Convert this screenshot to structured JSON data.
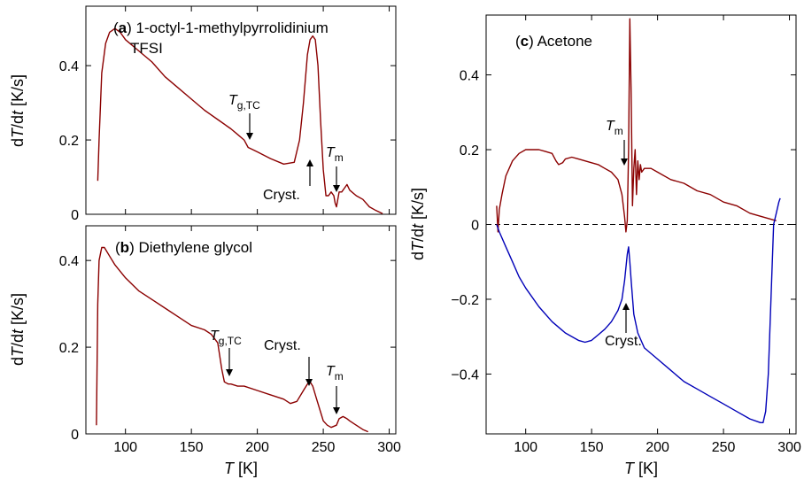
{
  "chart_data": [
    {
      "type": "line",
      "panel_letter": "a",
      "title": "1-octyl-1-methylpyrrolidinium",
      "title_line2": "TFSI",
      "xlabel": "",
      "ylabel": "dT/dt [K/s]",
      "xlim": [
        70,
        305
      ],
      "ylim": [
        0,
        0.56
      ],
      "xticks": [
        100,
        150,
        200,
        250,
        300
      ],
      "yticks": [
        0,
        0.2,
        0.4
      ],
      "ytick_labels": [
        "0",
        "0.2",
        "0.4"
      ],
      "series": [
        {
          "color": "#8b0000",
          "x": [
            79,
            80,
            82,
            85,
            88,
            92,
            96,
            100,
            110,
            120,
            130,
            140,
            150,
            160,
            170,
            180,
            185,
            190,
            193,
            196,
            200,
            210,
            220,
            228,
            232,
            235,
            238,
            240,
            242,
            244,
            246,
            248,
            250,
            252,
            254,
            256,
            258,
            259,
            260,
            261,
            262,
            264,
            266,
            268,
            270,
            275,
            280,
            285,
            290,
            295
          ],
          "y": [
            0.09,
            0.2,
            0.38,
            0.46,
            0.49,
            0.5,
            0.49,
            0.47,
            0.44,
            0.41,
            0.37,
            0.34,
            0.31,
            0.28,
            0.255,
            0.23,
            0.215,
            0.2,
            0.18,
            0.175,
            0.168,
            0.15,
            0.135,
            0.14,
            0.2,
            0.3,
            0.43,
            0.47,
            0.48,
            0.47,
            0.4,
            0.25,
            0.12,
            0.05,
            0.05,
            0.06,
            0.05,
            0.03,
            0.02,
            0.04,
            0.06,
            0.06,
            0.07,
            0.08,
            0.065,
            0.05,
            0.04,
            0.02,
            0.01,
            0.002
          ]
        }
      ],
      "annotations": [
        "T_g,TC",
        "Cryst.",
        "T_m"
      ]
    },
    {
      "type": "line",
      "panel_letter": "b",
      "title": "Diethylene glycol",
      "xlabel": "T [K]",
      "ylabel": "dT/dt [K/s]",
      "xlim": [
        70,
        305
      ],
      "ylim": [
        0,
        0.48
      ],
      "xticks": [
        100,
        150,
        200,
        250,
        300
      ],
      "yticks": [
        0,
        0.2,
        0.4
      ],
      "ytick_labels": [
        "0",
        "0.2",
        "0.4"
      ],
      "series": [
        {
          "color": "#8b0000",
          "x": [
            78,
            79,
            80,
            82,
            84,
            88,
            92,
            100,
            110,
            120,
            130,
            140,
            150,
            160,
            165,
            170,
            173,
            175,
            178,
            180,
            185,
            190,
            200,
            210,
            220,
            225,
            230,
            235,
            238,
            240,
            242,
            245,
            248,
            250,
            253,
            256,
            260,
            262,
            265,
            268,
            270,
            275,
            280,
            284
          ],
          "y": [
            0.02,
            0.3,
            0.4,
            0.43,
            0.43,
            0.41,
            0.39,
            0.36,
            0.33,
            0.31,
            0.29,
            0.27,
            0.25,
            0.24,
            0.23,
            0.21,
            0.15,
            0.12,
            0.115,
            0.115,
            0.11,
            0.11,
            0.1,
            0.09,
            0.08,
            0.07,
            0.075,
            0.1,
            0.115,
            0.12,
            0.11,
            0.08,
            0.05,
            0.03,
            0.02,
            0.015,
            0.02,
            0.035,
            0.04,
            0.035,
            0.03,
            0.02,
            0.01,
            0.005
          ]
        }
      ],
      "annotations": [
        "T_g,TC",
        "Cryst.",
        "T_m"
      ]
    },
    {
      "type": "line",
      "panel_letter": "c",
      "title": "Acetone",
      "xlabel": "T [K]",
      "ylabel": "dT/dt [K/s]",
      "xlim": [
        70,
        305
      ],
      "ylim": [
        -0.56,
        0.56
      ],
      "xticks": [
        100,
        150,
        200,
        250,
        300
      ],
      "yticks": [
        -0.4,
        -0.2,
        0,
        0.2,
        0.4
      ],
      "ytick_labels": [
        "−0.4",
        "−0.2",
        "0",
        "0.2",
        "0.4"
      ],
      "zero_line": true,
      "series": [
        {
          "color": "#8b0000",
          "x": [
            78,
            79,
            80,
            82,
            85,
            90,
            95,
            100,
            105,
            110,
            115,
            120,
            123,
            125,
            128,
            130,
            135,
            140,
            145,
            150,
            155,
            160,
            165,
            170,
            173,
            175,
            176,
            177,
            178,
            179,
            180,
            181,
            182,
            183,
            184,
            185,
            186,
            187,
            188,
            190,
            195,
            200,
            210,
            220,
            230,
            240,
            250,
            260,
            270,
            280,
            290
          ],
          "y": [
            0.05,
            -0.02,
            0.04,
            0.08,
            0.13,
            0.17,
            0.19,
            0.2,
            0.2,
            0.2,
            0.195,
            0.19,
            0.17,
            0.16,
            0.165,
            0.175,
            0.18,
            0.175,
            0.17,
            0.165,
            0.16,
            0.15,
            0.14,
            0.12,
            0.08,
            0.02,
            -0.02,
            0.01,
            0.2,
            0.55,
            0.35,
            0.05,
            0.15,
            0.2,
            0.08,
            0.17,
            0.12,
            0.16,
            0.14,
            0.15,
            0.15,
            0.14,
            0.12,
            0.11,
            0.09,
            0.08,
            0.06,
            0.05,
            0.03,
            0.02,
            0.01
          ]
        },
        {
          "color": "#0000b8",
          "x": [
            78,
            80,
            85,
            90,
            95,
            100,
            110,
            120,
            130,
            140,
            145,
            150,
            155,
            160,
            165,
            170,
            173,
            175,
            177,
            178,
            179,
            180,
            182,
            185,
            190,
            200,
            210,
            220,
            230,
            240,
            250,
            260,
            270,
            278,
            280,
            282,
            284,
            286,
            288,
            290,
            292,
            293
          ],
          "y": [
            0,
            -0.02,
            -0.06,
            -0.1,
            -0.14,
            -0.17,
            -0.22,
            -0.26,
            -0.29,
            -0.31,
            -0.315,
            -0.31,
            -0.295,
            -0.28,
            -0.26,
            -0.23,
            -0.2,
            -0.15,
            -0.08,
            -0.06,
            -0.1,
            -0.15,
            -0.24,
            -0.29,
            -0.33,
            -0.36,
            -0.39,
            -0.42,
            -0.44,
            -0.46,
            -0.48,
            -0.5,
            -0.52,
            -0.53,
            -0.53,
            -0.5,
            -0.4,
            -0.2,
            0,
            0.03,
            0.06,
            0.07
          ]
        }
      ],
      "annotations": [
        "T_m",
        "Cryst."
      ]
    }
  ],
  "labels": {
    "panel_a_letter": "a",
    "panel_a_title": "1-octyl-1-methylpyrrolidinium",
    "panel_a_title2": "TFSI",
    "panel_b_letter": "b",
    "panel_b_title": "Diethylene glycol",
    "panel_c_letter": "c",
    "panel_c_title": "Acetone",
    "ylabel_prefix": "d",
    "ylabel_T": "T",
    "ylabel_mid": "/d",
    "ylabel_t": "t",
    "ylabel_units": " [K/s]",
    "xlabel_T": "T",
    "xlabel_units": " [K]",
    "annot_T": "T",
    "annot_g_sub": "g,TC",
    "annot_m_sub": "m",
    "annot_cryst": "Cryst."
  }
}
